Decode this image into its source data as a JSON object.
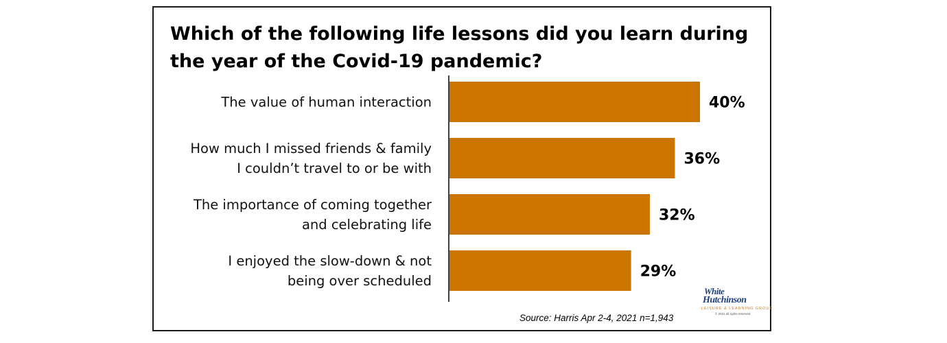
{
  "chart_data": {
    "type": "bar",
    "orientation": "horizontal",
    "title": "Which of the following life lessons did you learn during the year of the Covid-19 pandemic?",
    "categories": [
      [
        "The value of human interaction"
      ],
      [
        "How much I missed friends & family",
        "I couldn’t travel to or be with"
      ],
      [
        "The importance of coming together",
        "and celebrating life"
      ],
      [
        "I enjoyed the slow-down & not",
        "being over scheduled"
      ]
    ],
    "values": [
      40,
      36,
      32,
      29
    ],
    "value_labels": [
      "40%",
      "36%",
      "32%",
      "29%"
    ],
    "xlim": [
      0,
      40
    ],
    "grid": false,
    "bar_color": "#cc7400"
  },
  "source": "Source: Harris Apr 2-4, 2021 n=1,943",
  "logo": {
    "line1": "White",
    "line2": "Hutchinson",
    "line3": "LEISURE & LEARNING GROUP",
    "line4": "© 2021 all rights reserved"
  }
}
